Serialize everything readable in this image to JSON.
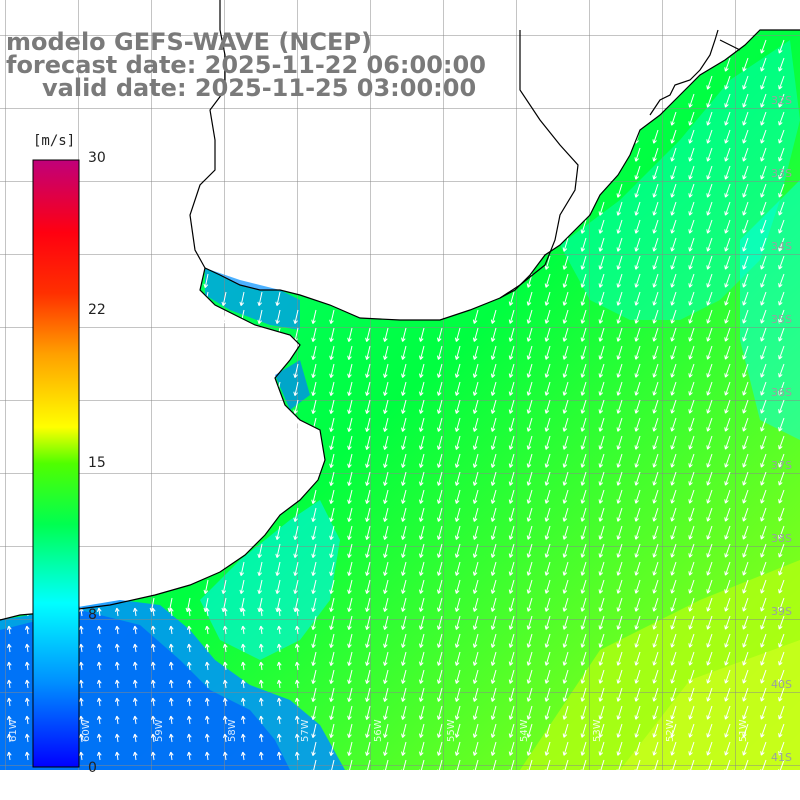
{
  "title": {
    "line1": "modelo GEFS-WAVE (NCEP)",
    "line2": "forecast date: 2025-11-22 06:00:00",
    "line3": "valid date: 2025-11-25 03:00:00"
  },
  "colorbar": {
    "unit": "[m/s]",
    "min": 0,
    "max": 30,
    "ticks": [
      30,
      22,
      15,
      8,
      0
    ],
    "colors": [
      "#0000ff",
      "#00c0ff",
      "#00ffff",
      "#00ff40",
      "#00e000",
      "#c8ff00",
      "#ffff00",
      "#ffa000",
      "#ff4000",
      "#ff0000",
      "#e00060",
      "#c80080"
    ]
  },
  "lat_labels": [
    "32S",
    "33S",
    "34S",
    "35S",
    "36S",
    "37S",
    "38S",
    "39S",
    "40S",
    "41S"
  ],
  "lon_labels": [
    "61W",
    "60W",
    "59W",
    "58W",
    "57W",
    "56W",
    "55W",
    "54W",
    "53W",
    "52W",
    "51W"
  ],
  "palette": {
    "land": "#ffffff",
    "grid": "#888888",
    "coast": "#000000",
    "arrow": "#ffffff",
    "title": "#7a7a7a"
  }
}
